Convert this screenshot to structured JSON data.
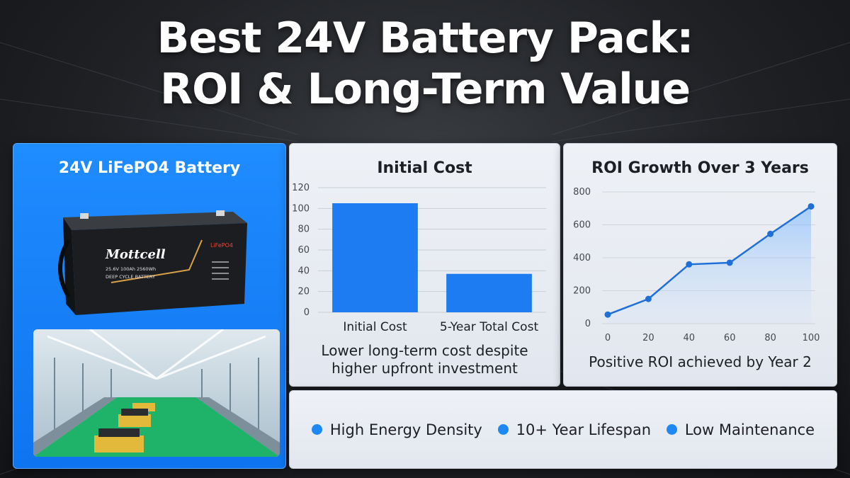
{
  "title_line1": "Best 24V Battery Pack:",
  "title_line2": "ROI & Long-Term Value",
  "product_panel": {
    "title": "24V LiFePO4 Battery",
    "battery_brand": "Mottcell",
    "battery_chem": "LiFePO4",
    "battery_spec": "25.6V 100Ah 2560Wh",
    "battery_type": "DEEP CYCLE BATTERY"
  },
  "chart_data": [
    {
      "type": "bar",
      "title": "Initial Cost",
      "categories": [
        "Initial Cost",
        "5-Year Total Cost"
      ],
      "values": [
        105,
        37
      ],
      "ylim": [
        0,
        120
      ],
      "yticks": [
        0,
        20,
        40,
        60,
        80,
        100,
        120
      ],
      "grid": true,
      "caption": [
        "Lower long-term cost despite",
        "higher upfront investment"
      ],
      "color": "#1e7cf2"
    },
    {
      "type": "area",
      "title": "ROI Growth Over 3 Years",
      "x": [
        0,
        20,
        40,
        60,
        80,
        100
      ],
      "y": [
        55,
        150,
        360,
        370,
        545,
        712
      ],
      "xlim": [
        0,
        100
      ],
      "ylim": [
        0,
        800
      ],
      "xticks": [
        0,
        20,
        40,
        60,
        80,
        100
      ],
      "yticks": [
        0,
        200,
        400,
        600,
        800
      ],
      "grid": true,
      "caption": "Positive ROI achieved by Year 2",
      "color": "#1f6fd8"
    }
  ],
  "features": [
    "High Energy Density",
    "10+ Year Lifespan",
    "Low Maintenance"
  ]
}
